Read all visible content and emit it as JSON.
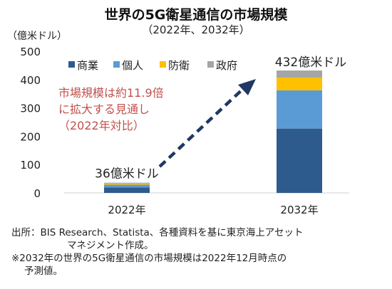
{
  "chart_data": {
    "type": "bar",
    "stacked": true,
    "title": "世界の5G衛星通信の市場規模",
    "subtitle": "（2022年、2032年）",
    "ylabel": "（億米ドル）",
    "xlabel": "",
    "ylim": [
      0,
      500
    ],
    "yticks": [
      0,
      100,
      200,
      300,
      400,
      500
    ],
    "grid": false,
    "legend_position": "top",
    "categories": [
      "2022年",
      "2032年"
    ],
    "series": [
      {
        "name": "商業",
        "color": "#2e5b8e",
        "values": [
          19,
          227
        ]
      },
      {
        "name": "個人",
        "color": "#5b9bd5",
        "values": [
          10,
          135
        ]
      },
      {
        "name": "防衛",
        "color": "#ffc000",
        "values": [
          4,
          45
        ]
      },
      {
        "name": "政府",
        "color": "#a5a5a5",
        "values": [
          3,
          25
        ]
      }
    ],
    "totals": [
      "36億米ドル",
      "432億米ドル"
    ],
    "annotation": {
      "lines": [
        "市場規模は約11.9倍",
        "に拡大する見通し",
        "（2022年対比）"
      ],
      "color": "#c0504d"
    }
  },
  "notes": {
    "line1": "出所：BIS Research、Statista、各種資料を基に東京海上アセット",
    "line2": "マネジメント作成。",
    "line3": "※2032年の世界の5G衛星通信の市場規模は2022年12月時点の",
    "line4": "予測値。"
  }
}
